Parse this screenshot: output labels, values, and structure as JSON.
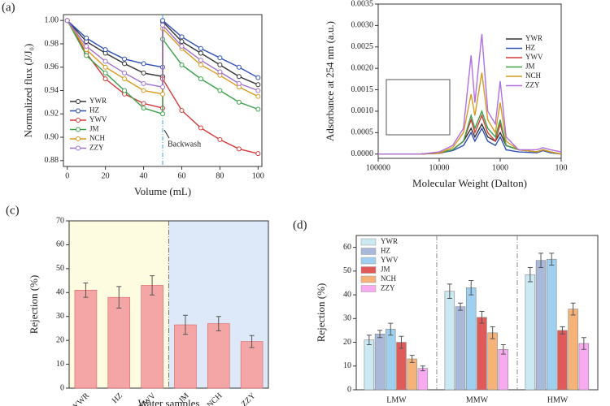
{
  "chart_data": [
    {
      "type": "line",
      "panel_label": "(a)",
      "xlabel": "Volume (mL)",
      "ylabel": "Normalized flux (J/J₀)",
      "x": [
        0,
        10,
        20,
        30,
        40,
        50,
        50,
        60,
        70,
        80,
        90,
        100
      ],
      "xlim": [
        -2,
        102
      ],
      "xticks": [
        0,
        20,
        40,
        60,
        80,
        100
      ],
      "ylim": [
        0.875,
        1.005
      ],
      "yticks": [
        {
          "value": 0.88,
          "label": "0.88"
        },
        {
          "value": 0.9,
          "label": "0.90"
        },
        {
          "value": 0.92,
          "label": "0.92"
        },
        {
          "value": 0.94,
          "label": "0.94"
        },
        {
          "value": 0.96,
          "label": "0.96"
        },
        {
          "value": 0.98,
          "label": "0.98"
        },
        {
          "value": 1,
          "label": "1.00"
        }
      ],
      "markers": true,
      "legend": "lower left",
      "annotations": [
        {
          "text": "Backwash",
          "x": 50,
          "y": 0.902
        }
      ],
      "series": [
        {
          "name": "YWR",
          "color": "#333333",
          "values": [
            1.0,
            0.982,
            0.972,
            0.963,
            0.955,
            0.952,
            0.999,
            0.982,
            0.972,
            0.962,
            0.952,
            0.945
          ]
        },
        {
          "name": "HZ",
          "color": "#2f4fb5",
          "values": [
            1.0,
            0.985,
            0.975,
            0.967,
            0.963,
            0.96,
            1.0,
            0.986,
            0.976,
            0.968,
            0.96,
            0.951
          ]
        },
        {
          "name": "YWV",
          "color": "#d43a3a",
          "values": [
            1.0,
            0.972,
            0.95,
            0.937,
            0.929,
            0.925,
            0.95,
            0.923,
            0.908,
            0.898,
            0.89,
            0.886
          ]
        },
        {
          "name": "JM",
          "color": "#3aa14a",
          "values": [
            1.0,
            0.97,
            0.955,
            0.94,
            0.925,
            0.92,
            0.984,
            0.962,
            0.95,
            0.94,
            0.93,
            0.924
          ]
        },
        {
          "name": "NCH",
          "color": "#d99a1e",
          "values": [
            1.0,
            0.975,
            0.96,
            0.95,
            0.94,
            0.937,
            0.993,
            0.976,
            0.962,
            0.953,
            0.943,
            0.935
          ]
        },
        {
          "name": "ZZY",
          "color": "#a070d0",
          "values": [
            1.0,
            0.978,
            0.965,
            0.955,
            0.946,
            0.943,
            0.996,
            0.978,
            0.966,
            0.956,
            0.946,
            0.94
          ]
        }
      ]
    },
    {
      "type": "line",
      "panel_label": "(b)",
      "xlabel": "Molecular Weight (Dalton)",
      "ylabel": "Adsorbance at 254 nm (a.u.)",
      "x": [
        100000,
        20000,
        10000,
        6000,
        4000,
        3000,
        2600,
        2000,
        1600,
        1200,
        1000,
        800,
        500,
        250,
        200,
        150,
        100
      ],
      "xlim": [
        100000,
        100
      ],
      "xlog": true,
      "xticks": [
        100000,
        10000,
        1000,
        100
      ],
      "ylim": [
        -0.0001,
        0.0035
      ],
      "yticks": [
        {
          "value": 0,
          "label": "0.0000"
        },
        {
          "value": 0.0005,
          "label": "0.0005"
        },
        {
          "value": 0.001,
          "label": "0.0010"
        },
        {
          "value": 0.0015,
          "label": "0.0015"
        },
        {
          "value": 0.002,
          "label": "0.0020"
        },
        {
          "value": 0.0025,
          "label": "0.0025"
        },
        {
          "value": 0.003,
          "label": "0.0030"
        },
        {
          "value": 0.0035,
          "label": "0.0035"
        }
      ],
      "markers": false,
      "legend": "upper right",
      "series": [
        {
          "name": "YWR",
          "color": "#333333",
          "values": [
            0,
            0,
            2e-05,
            0.0001,
            0.0003,
            0.0006,
            0.0004,
            0.0007,
            0.0004,
            0.0003,
            0.0005,
            0.0002,
            0.0001,
            5e-05,
            0.0001,
            5e-05,
            0
          ]
        },
        {
          "name": "HZ",
          "color": "#2f4fb5",
          "values": [
            0,
            0,
            2e-05,
            8e-05,
            0.0002,
            0.0005,
            0.0003,
            0.0006,
            0.0003,
            0.0002,
            0.0004,
            0.0001,
            5e-05,
            3e-05,
            8e-05,
            3e-05,
            0
          ]
        },
        {
          "name": "YWV",
          "color": "#d43a3a",
          "values": [
            0,
            0,
            2e-05,
            0.0001,
            0.0003,
            0.0008,
            0.0005,
            0.0009,
            0.0005,
            0.0003,
            0.0007,
            0.0002,
            0.0001,
            5e-05,
            0.0001,
            5e-05,
            0
          ]
        },
        {
          "name": "JM",
          "color": "#3aa14a",
          "values": [
            0,
            0,
            3e-05,
            0.0001,
            0.0003,
            0.0009,
            0.0006,
            0.001,
            0.0006,
            0.0004,
            0.0008,
            0.0002,
            0.0001,
            5e-05,
            0.0001,
            5e-05,
            0
          ]
        },
        {
          "name": "NCH",
          "color": "#d99a1e",
          "values": [
            0,
            0,
            3e-05,
            0.00015,
            0.0005,
            0.0014,
            0.0009,
            0.0019,
            0.0008,
            0.0005,
            0.0012,
            0.0003,
            0.0001,
            5e-05,
            0.0001,
            5e-05,
            0
          ]
        },
        {
          "name": "ZZY",
          "color": "#b070e0",
          "values": [
            0,
            0,
            5e-05,
            0.0002,
            0.0006,
            0.0023,
            0.0012,
            0.0028,
            0.001,
            0.0007,
            0.0017,
            0.0004,
            0.0001,
            0.0001,
            0.00015,
            0.0001,
            5e-05
          ]
        }
      ]
    },
    {
      "type": "bar",
      "panel_label": "(c)",
      "xlabel": "Water samples",
      "ylabel": "Rejection (%)",
      "categories": [
        "YWR",
        "HZ",
        "YWV",
        "JM",
        "NCH",
        "ZZY"
      ],
      "values": [
        41,
        38,
        43,
        26.5,
        27,
        19.5
      ],
      "errors": [
        3,
        4.5,
        4,
        4,
        3,
        2.5
      ],
      "color": "#f4a6a6",
      "edge": "#e06060",
      "ylim": [
        0,
        70
      ],
      "yticks": [
        0,
        10,
        20,
        30,
        40,
        50,
        60,
        70
      ]
    },
    {
      "type": "bar",
      "panel_label": "(d)",
      "ylabel": "Rejection (%)",
      "categories": [
        "LMW",
        "MMW",
        "HMW"
      ],
      "legend": "upper left",
      "ylim": [
        0,
        65
      ],
      "yticks": [
        0,
        10,
        20,
        30,
        40,
        50,
        60
      ],
      "series": [
        {
          "name": "YWR",
          "color": "#cbe9f2",
          "values": [
            21,
            41.5,
            48.5
          ],
          "errors": [
            2,
            3,
            3
          ]
        },
        {
          "name": "HZ",
          "color": "#a9b9d9",
          "values": [
            23.5,
            35,
            54.5
          ],
          "errors": [
            1.5,
            1.5,
            3
          ]
        },
        {
          "name": "YWV",
          "color": "#9fd0ef",
          "values": [
            25.5,
            43,
            55
          ],
          "errors": [
            2.5,
            3,
            2.5
          ]
        },
        {
          "name": "JM",
          "color": "#e05a5a",
          "values": [
            20,
            30.5,
            25
          ],
          "errors": [
            2.5,
            2.5,
            1.5
          ]
        },
        {
          "name": "NCH",
          "color": "#f5b37a",
          "values": [
            13,
            24,
            34
          ],
          "errors": [
            1.5,
            2.5,
            2.5
          ]
        },
        {
          "name": "ZZY",
          "color": "#f7aaf0",
          "values": [
            9,
            17,
            19.5
          ],
          "errors": [
            1,
            2,
            2.5
          ]
        }
      ]
    }
  ]
}
